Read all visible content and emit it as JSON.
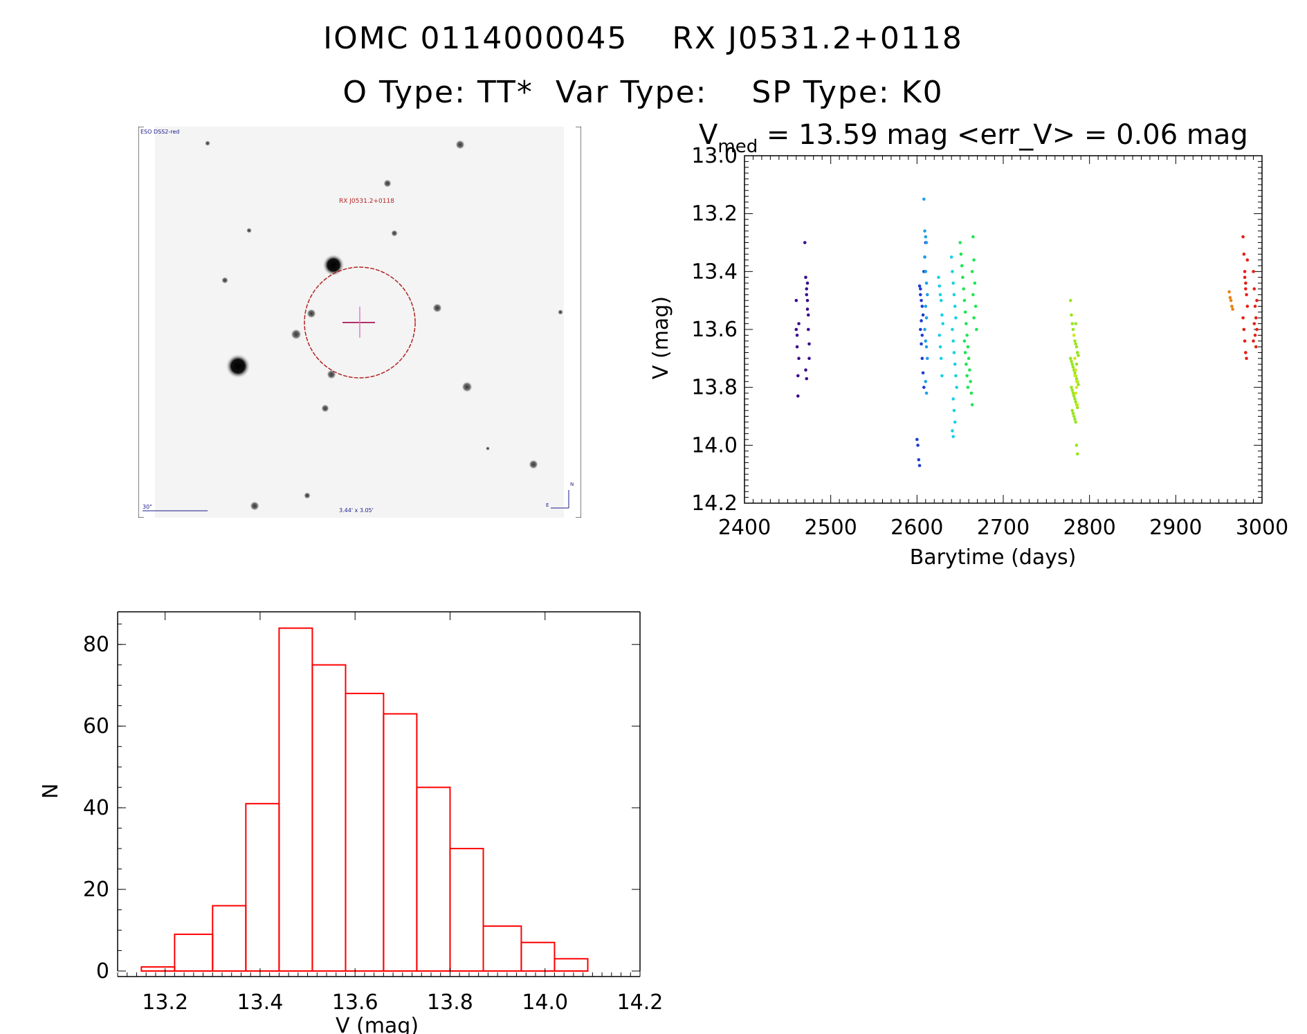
{
  "header": {
    "line1_left": "IOMC 0114000045",
    "line1_right": "RX J0531.2+0118",
    "line2_a": "O Type: TT*",
    "line2_b": "Var Type:",
    "line2_c": "SP Type: K0"
  },
  "finder": {
    "survey_label": "ESO DSS2-red",
    "target_label": "RX J0531.2+0118",
    "scale_label": "30\"",
    "size_label": "3.44' x 3.05'",
    "compass_n": "N",
    "compass_e": "E",
    "colors": {
      "circle": "#b22222",
      "cross": "#b0306a",
      "annotation": "#1a1a8c"
    }
  },
  "chart_data": [
    {
      "type": "scatter",
      "title_prefix": "V",
      "title_sub": "med",
      "title_rest": " = 13.59 mag <err_V> = 0.06 mag",
      "xlabel": "Barytime (days)",
      "ylabel": "V (mag)",
      "xlim": [
        2400,
        3000
      ],
      "ylim": [
        14.2,
        13.0
      ],
      "xticks": [
        "2400",
        "2500",
        "2600",
        "2700",
        "2800",
        "2900",
        "3000"
      ],
      "yticks": [
        "13.0",
        "13.2",
        "13.4",
        "13.6",
        "13.8",
        "14.0",
        "14.2"
      ],
      "series": [
        {
          "name": "group1",
          "color": "#3b0a8c",
          "x": [
            2460,
            2460,
            2461,
            2461,
            2462,
            2462,
            2463,
            2463,
            2470,
            2471,
            2472,
            2472,
            2473,
            2473,
            2474,
            2474,
            2475,
            2475,
            2471,
            2472,
            2473
          ],
          "y": [
            13.5,
            13.6,
            13.62,
            13.66,
            13.76,
            13.83,
            13.58,
            13.7,
            13.3,
            13.42,
            13.46,
            13.48,
            13.5,
            13.53,
            13.55,
            13.6,
            13.65,
            13.7,
            13.74,
            13.77,
            13.44
          ]
        },
        {
          "name": "group2",
          "color": "#1e3cd2",
          "x": [
            2600,
            2601,
            2602,
            2603,
            2604,
            2605,
            2606,
            2607,
            2608,
            2609,
            2610,
            2604,
            2605,
            2606,
            2607,
            2608,
            2603,
            2604,
            2605,
            2606
          ],
          "y": [
            13.98,
            14.0,
            14.05,
            14.07,
            13.46,
            13.5,
            13.52,
            13.55,
            13.4,
            13.35,
            13.3,
            13.6,
            13.65,
            13.7,
            13.75,
            13.8,
            13.45,
            13.48,
            13.57,
            13.62
          ]
        },
        {
          "name": "group3",
          "color": "#1ea0e6",
          "x": [
            2608,
            2609,
            2610,
            2611,
            2609,
            2610,
            2611,
            2612,
            2610,
            2611,
            2609,
            2610,
            2611,
            2612,
            2610,
            2611
          ],
          "y": [
            13.15,
            13.26,
            13.28,
            13.3,
            13.35,
            13.4,
            13.44,
            13.48,
            13.52,
            13.56,
            13.6,
            13.64,
            13.66,
            13.7,
            13.78,
            13.82
          ]
        },
        {
          "name": "group4",
          "color": "#14d2e6",
          "x": [
            2625,
            2626,
            2627,
            2628,
            2629,
            2630,
            2626,
            2627,
            2628,
            2629,
            2640,
            2641,
            2642,
            2643,
            2644,
            2645,
            2641,
            2642,
            2643,
            2644,
            2645,
            2646,
            2642,
            2643,
            2644,
            2641,
            2642
          ],
          "y": [
            13.42,
            13.45,
            13.48,
            13.5,
            13.55,
            13.58,
            13.62,
            13.66,
            13.7,
            13.76,
            13.35,
            13.4,
            13.44,
            13.48,
            13.52,
            13.56,
            13.6,
            13.64,
            13.68,
            13.72,
            13.76,
            13.8,
            13.84,
            13.88,
            13.92,
            13.95,
            13.97
          ]
        },
        {
          "name": "group5",
          "color": "#1ee650",
          "x": [
            2650,
            2651,
            2652,
            2653,
            2654,
            2655,
            2656,
            2657,
            2658,
            2659,
            2660,
            2661,
            2662,
            2663,
            2664,
            2665,
            2666,
            2667,
            2668,
            2669,
            2655,
            2656,
            2657,
            2658,
            2659,
            2664,
            2665,
            2666
          ],
          "y": [
            13.3,
            13.34,
            13.38,
            13.42,
            13.46,
            13.5,
            13.54,
            13.58,
            13.62,
            13.66,
            13.7,
            13.74,
            13.78,
            13.82,
            13.86,
            13.28,
            13.36,
            13.44,
            13.52,
            13.6,
            13.64,
            13.68,
            13.72,
            13.76,
            13.8,
            13.4,
            13.48,
            13.56
          ]
        },
        {
          "name": "group6",
          "color": "#96e61e",
          "x": [
            2778,
            2779,
            2780,
            2781,
            2782,
            2783,
            2784,
            2785,
            2786,
            2787,
            2778,
            2779,
            2780,
            2781,
            2782,
            2783,
            2784,
            2785,
            2786,
            2787,
            2779,
            2780,
            2781,
            2782,
            2783,
            2784,
            2785,
            2786,
            2780,
            2781,
            2782,
            2783,
            2784,
            2785,
            2786,
            2785,
            2786,
            2784
          ],
          "y": [
            13.5,
            13.55,
            13.58,
            13.6,
            13.62,
            13.64,
            13.65,
            13.66,
            13.68,
            13.69,
            13.7,
            13.71,
            13.72,
            13.73,
            13.74,
            13.75,
            13.76,
            13.77,
            13.78,
            13.79,
            13.8,
            13.81,
            13.82,
            13.83,
            13.84,
            13.85,
            13.86,
            13.87,
            13.88,
            13.89,
            13.9,
            13.91,
            13.92,
            13.72,
            13.68,
            14.0,
            14.03,
            13.58
          ]
        },
        {
          "name": "group7",
          "color": "#d2e61e",
          "x": [
            2782,
            2783,
            2784,
            2785,
            2786,
            2783,
            2784,
            2785
          ],
          "y": [
            13.62,
            13.7,
            13.74,
            13.8,
            13.86,
            13.76,
            13.82,
            13.78
          ]
        },
        {
          "name": "group8",
          "color": "#e68214",
          "x": [
            2962,
            2963,
            2964,
            2965,
            2966
          ],
          "y": [
            13.47,
            13.49,
            13.5,
            13.52,
            13.53
          ]
        },
        {
          "name": "group9",
          "color": "#e61e14",
          "x": [
            2978,
            2979,
            2980,
            2981,
            2982,
            2983,
            2978,
            2979,
            2980,
            2981,
            2982,
            2983,
            2990,
            2991,
            2992,
            2993,
            2994,
            2990,
            2991,
            2992,
            2993,
            2994,
            2980,
            2981
          ],
          "y": [
            13.28,
            13.34,
            13.4,
            13.44,
            13.48,
            13.52,
            13.56,
            13.6,
            13.64,
            13.68,
            13.7,
            13.36,
            13.4,
            13.46,
            13.52,
            13.56,
            13.6,
            13.64,
            13.58,
            13.62,
            13.66,
            13.5,
            13.42,
            13.46
          ]
        }
      ]
    },
    {
      "type": "bar",
      "subtype": "histogram",
      "xlabel": "V (mag)",
      "ylabel": "N",
      "xlim": [
        13.1,
        14.2
      ],
      "ylim": [
        0,
        88
      ],
      "xticks": [
        "13.2",
        "13.4",
        "13.6",
        "13.8",
        "14.0",
        "14.2"
      ],
      "yticks": [
        "0",
        "20",
        "40",
        "60",
        "80"
      ],
      "bin_edges": [
        13.15,
        13.22,
        13.3,
        13.37,
        13.44,
        13.51,
        13.58,
        13.66,
        13.73,
        13.8,
        13.87,
        13.95,
        14.02,
        14.09
      ],
      "values": [
        1,
        9,
        16,
        41,
        84,
        75,
        68,
        63,
        45,
        30,
        11,
        7,
        3
      ],
      "color": "#ff0000"
    }
  ]
}
